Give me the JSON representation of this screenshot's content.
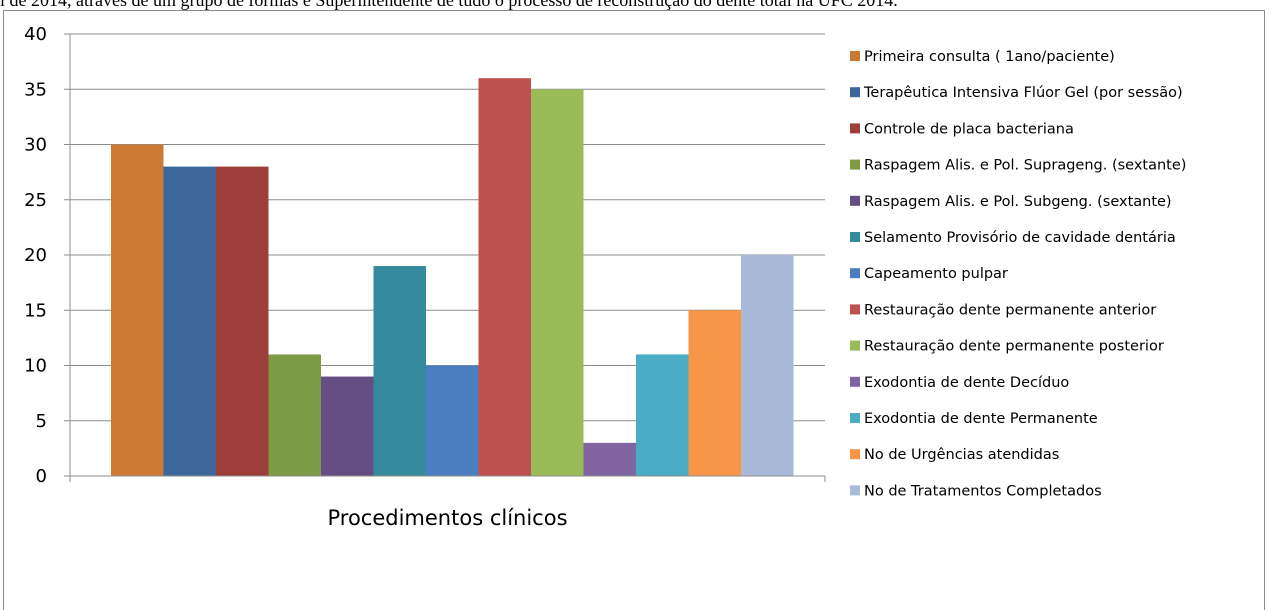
{
  "caption": "i de 2014, através de um grupo de formas e Superintendente de tudo o processo de reconstrução do dente total na UFC 2014.",
  "chart_data": {
    "type": "bar",
    "title": "",
    "xlabel": "Procedimentos clínicos",
    "ylabel": "",
    "ylim": [
      0,
      40
    ],
    "yticks": [
      0,
      5,
      10,
      15,
      20,
      25,
      30,
      35,
      40
    ],
    "grid": true,
    "legend_position": "right",
    "series": [
      {
        "name": "Primeira consulta ( 1ano/paciente)",
        "value": 30,
        "color": "#CC7A36"
      },
      {
        "name": "Terapêutica Intensiva Flúor Gel (por sessão)",
        "value": 28,
        "color": "#3D6699"
      },
      {
        "name": "Controle de placa bacteriana",
        "value": 28,
        "color": "#9E3E3B"
      },
      {
        "name": "Raspagem Alis. e Pol. Suprageng. (sextante)",
        "value": 11,
        "color": "#7D9A45"
      },
      {
        "name": "Raspagem Alis. e Pol. Subgeng. (sextante)",
        "value": 9,
        "color": "#654E84"
      },
      {
        "name": "Selamento Provisório de cavidade dentária",
        "value": 19,
        "color": "#368A9E"
      },
      {
        "name": "Capeamento  pulpar",
        "value": 10,
        "color": "#4A7EC0"
      },
      {
        "name": "Restauração dente permanente anterior",
        "value": 36,
        "color": "#C0504D"
      },
      {
        "name": "Restauração dente permanente posterior",
        "value": 35,
        "color": "#9BBB59"
      },
      {
        "name": "Exodontia de dente Decíduo",
        "value": 3,
        "color": "#8064A2"
      },
      {
        "name": "Exodontia de dente Permanente",
        "value": 11,
        "color": "#4BACC6"
      },
      {
        "name": "No de Urgências atendidas",
        "value": 15,
        "color": "#F79646"
      },
      {
        "name": "No de Tratamentos Completados",
        "value": 20,
        "color": "#A9B9D7"
      }
    ]
  }
}
